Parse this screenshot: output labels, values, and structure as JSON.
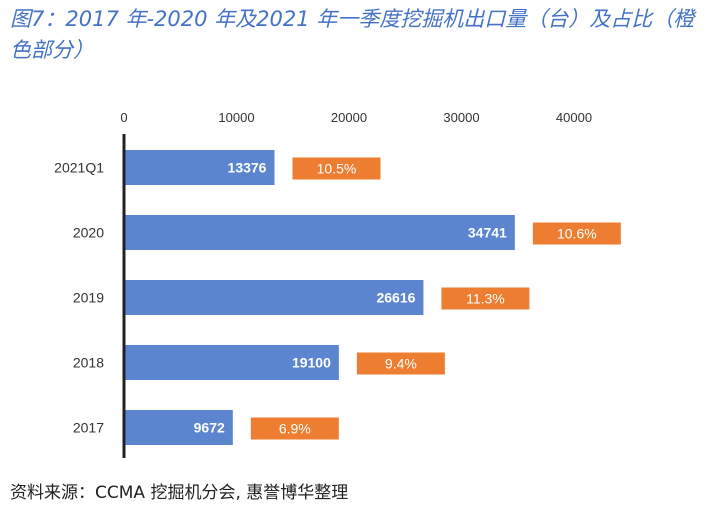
{
  "title": "图7：2017 年-2020 年及2021 年一季度挖掘机出口量（台）及占比（橙色部分）",
  "source": "资料来源：CCMA 挖掘机分会, 惠誉博华整理",
  "colors": {
    "bar": "#5b86cf",
    "share": "#ed7d31",
    "axis": "#222222"
  },
  "chart_data": {
    "type": "bar",
    "orientation": "horizontal",
    "x_axis_position": "top",
    "xlim": [
      0,
      40000
    ],
    "x_ticks": [
      "0",
      "10000",
      "20000",
      "30000",
      "40000"
    ],
    "categories": [
      "2021Q1",
      "2020",
      "2019",
      "2018",
      "2017"
    ],
    "values": [
      13376,
      34741,
      26616,
      19100,
      9672
    ],
    "share_labels": [
      "10.5%",
      "10.6%",
      "11.3%",
      "9.4%",
      "6.9%"
    ],
    "grid": false
  }
}
